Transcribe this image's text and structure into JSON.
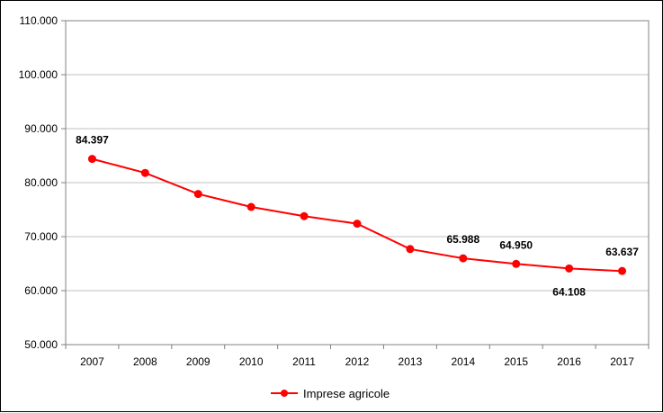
{
  "chart_data": {
    "type": "line",
    "title": "",
    "xlabel": "",
    "ylabel": "",
    "categories": [
      "2007",
      "2008",
      "2009",
      "2010",
      "2011",
      "2012",
      "2013",
      "2014",
      "2015",
      "2016",
      "2017"
    ],
    "series": [
      {
        "name": "Imprese agricole",
        "color": "#ff0000",
        "values": [
          84397,
          81800,
          77900,
          75500,
          73800,
          72400,
          67700,
          65988,
          64950,
          64108,
          63637
        ]
      }
    ],
    "ylim": [
      50000,
      110000
    ],
    "yticks": [
      50000,
      60000,
      70000,
      80000,
      90000,
      100000,
      110000
    ],
    "ytick_labels": [
      "50.000",
      "60.000",
      "70.000",
      "80.000",
      "90.000",
      "100.000",
      "110.000"
    ],
    "data_labels": [
      {
        "index": 0,
        "text": "84.397",
        "placement": "above"
      },
      {
        "index": 7,
        "text": "65.988",
        "placement": "above"
      },
      {
        "index": 8,
        "text": "64.950",
        "placement": "above"
      },
      {
        "index": 9,
        "text": "64.108",
        "placement": "below"
      },
      {
        "index": 10,
        "text": "63.637",
        "placement": "above"
      }
    ],
    "grid": true,
    "legend": "bottom-center"
  }
}
